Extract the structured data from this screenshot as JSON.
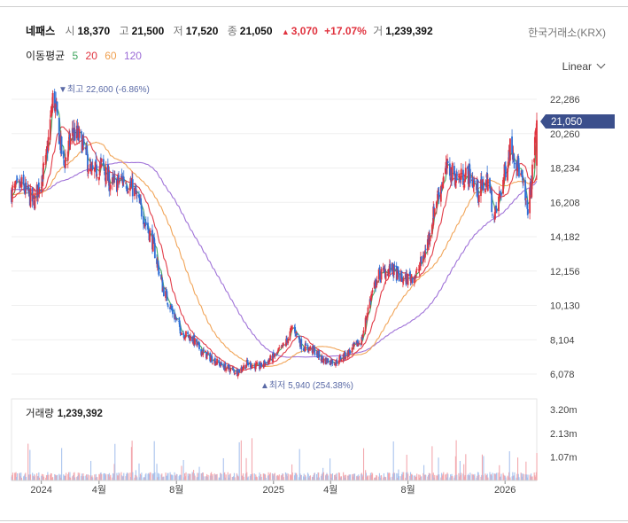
{
  "header": {
    "name": "네패스",
    "open_label": "시",
    "open": "18,370",
    "high_label": "고",
    "high": "21,500",
    "low_label": "저",
    "low": "17,520",
    "close_label": "종",
    "close": "21,050",
    "change_arrow": "▲",
    "change": "3,070",
    "change_pct": "+17.07%",
    "volume_label": "거",
    "volume": "1,239,392",
    "exchange": "한국거래소(KRX)"
  },
  "moving_average": {
    "label": "이동평균",
    "periods": [
      {
        "p": "5",
        "color": "#e0608a"
      },
      {
        "p": "20",
        "color": "#f07a63"
      },
      {
        "p": "60",
        "color": "#f0a050"
      },
      {
        "p": "120",
        "color": "#9b6bd6"
      }
    ]
  },
  "scale": {
    "label": "Linear"
  },
  "annotations": {
    "max_text": "▼최고 22,600 (-6.86%)",
    "min_text": "▲최저 5,940 (254.38%)",
    "last_price": "21,050"
  },
  "volume_panel": {
    "label": "거래량",
    "value": "1,239,392"
  },
  "colors": {
    "up": "#e0323e",
    "down": "#2f6fd6",
    "last_badge": "#3b4f8c",
    "grid": "#eeeeee"
  },
  "chart_data": {
    "type": "candlestick",
    "price_axis": {
      "ticks": [
        "22,286",
        "20,260",
        "18,234",
        "16,208",
        "14,182",
        "12,156",
        "10,130",
        "8,104",
        "6,078"
      ],
      "values": [
        22286,
        20260,
        18234,
        16208,
        14182,
        12156,
        10130,
        8104,
        6078
      ]
    },
    "volume_axis": {
      "ticks": [
        "3.20m",
        "2.13m",
        "1.07m"
      ],
      "values": [
        3200000,
        2130000,
        1070000
      ]
    },
    "x_axis": {
      "labels": [
        "2024",
        "4월",
        "8월",
        "2025",
        "4월",
        "8월",
        "2026"
      ],
      "dates": [
        "2024-01-01",
        "2024-04-01",
        "2024-08-01",
        "2025-01-01",
        "2025-04-01",
        "2025-08-01",
        "2026-01-01"
      ],
      "start": "2023-11-15",
      "end": "2026-02-20"
    },
    "price_path": [
      [
        "2023-11-15",
        16800
      ],
      [
        "2023-12-01",
        17200
      ],
      [
        "2023-12-20",
        16200
      ],
      [
        "2024-01-08",
        18500
      ],
      [
        "2024-01-20",
        22600
      ],
      [
        "2024-02-05",
        18400
      ],
      [
        "2024-02-20",
        20400
      ],
      [
        "2024-03-05",
        19800
      ],
      [
        "2024-03-20",
        17800
      ],
      [
        "2024-04-05",
        18400
      ],
      [
        "2024-04-20",
        17200
      ],
      [
        "2024-05-10",
        17600
      ],
      [
        "2024-05-25",
        17000
      ],
      [
        "2024-06-10",
        15400
      ],
      [
        "2024-06-25",
        13800
      ],
      [
        "2024-07-10",
        11200
      ],
      [
        "2024-07-25",
        9800
      ],
      [
        "2024-08-10",
        8500
      ],
      [
        "2024-08-25",
        8200
      ],
      [
        "2024-09-10",
        7400
      ],
      [
        "2024-09-25",
        7000
      ],
      [
        "2024-10-15",
        6500
      ],
      [
        "2024-11-05",
        6200
      ],
      [
        "2024-11-20",
        6700
      ],
      [
        "2024-12-10",
        6500
      ],
      [
        "2025-01-05",
        7200
      ],
      [
        "2025-01-20",
        7900
      ],
      [
        "2025-02-01",
        8900
      ],
      [
        "2025-02-15",
        7700
      ],
      [
        "2025-03-05",
        7500
      ],
      [
        "2025-03-20",
        6900
      ],
      [
        "2025-04-10",
        6800
      ],
      [
        "2025-05-01",
        7400
      ],
      [
        "2025-05-20",
        8100
      ],
      [
        "2025-06-01",
        10300
      ],
      [
        "2025-06-15",
        11900
      ],
      [
        "2025-07-05",
        12300
      ],
      [
        "2025-07-25",
        11600
      ],
      [
        "2025-08-15",
        12000
      ],
      [
        "2025-08-30",
        13500
      ],
      [
        "2025-09-15",
        16400
      ],
      [
        "2025-10-01",
        18200
      ],
      [
        "2025-10-20",
        17600
      ],
      [
        "2025-11-05",
        17900
      ],
      [
        "2025-11-20",
        16800
      ],
      [
        "2025-12-05",
        17600
      ],
      [
        "2025-12-15",
        15200
      ],
      [
        "2025-12-28",
        17300
      ],
      [
        "2026-01-10",
        19700
      ],
      [
        "2026-01-25",
        17900
      ],
      [
        "2026-02-05",
        15800
      ],
      [
        "2026-02-12",
        17400
      ],
      [
        "2026-02-20",
        21050
      ]
    ]
  }
}
